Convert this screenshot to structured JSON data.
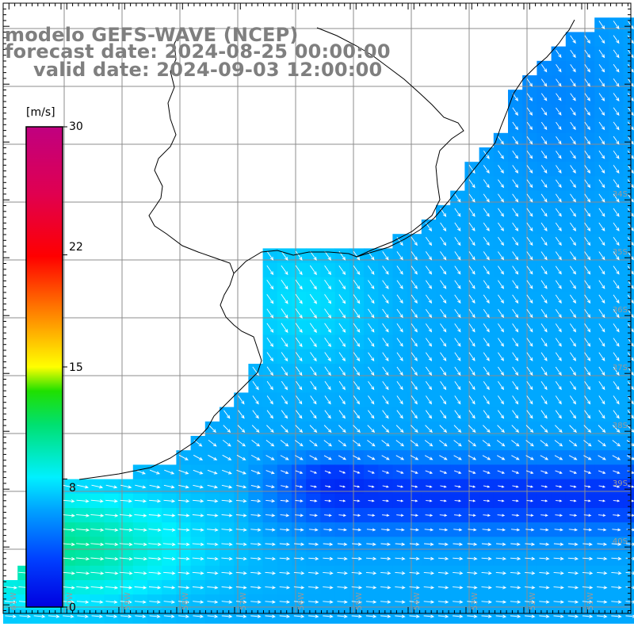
{
  "titles": {
    "line1": "modelo GEFS-WAVE (NCEP)",
    "line2": "forecast date: 2024-08-25 00:00:00",
    "line3": "valid date: 2024-09-03 12:00:00"
  },
  "colorbar": {
    "unit": "[m/s]",
    "range": [
      0,
      30
    ],
    "ticks": [
      {
        "value": 30,
        "label": "30"
      },
      {
        "value": 22,
        "label": "22"
      },
      {
        "value": 15,
        "label": "15"
      },
      {
        "value": 8,
        "label": "8"
      },
      {
        "value": 0,
        "label": "0"
      }
    ],
    "colors": [
      "#0000e0",
      "#0040ff",
      "#00a0ff",
      "#00e8ff",
      "#00ff40",
      "#b0ff00",
      "#ffff00",
      "#ff8000",
      "#ff0000",
      "#e00060",
      "#c00080"
    ]
  },
  "lat_labels": [
    "34S",
    "35S",
    "36S",
    "37S",
    "38S",
    "39S",
    "40S"
  ],
  "lon_labels": [
    "61W",
    "60W",
    "59W",
    "58W",
    "57W",
    "56W",
    "55W",
    "54W",
    "53W",
    "52W",
    "51W"
  ],
  "colors": {
    "title_gray": "#7f7f7f",
    "grid": "#8c8c8c",
    "coast": "#000000",
    "arrow": "#ffffff"
  },
  "chart_data": {
    "type": "heatmap",
    "variable": "wind speed",
    "units": "m/s",
    "vmin": 0,
    "vmax": 30,
    "wind_regions": [
      {
        "region": "offshore north",
        "speed": 6,
        "direction": "SE"
      },
      {
        "region": "central shelf",
        "speed": 6.5,
        "direction": "SE"
      },
      {
        "region": "southern band",
        "speed": 2.5,
        "direction": "E"
      },
      {
        "region": "southwest",
        "speed": 9,
        "direction": "E"
      }
    ]
  }
}
